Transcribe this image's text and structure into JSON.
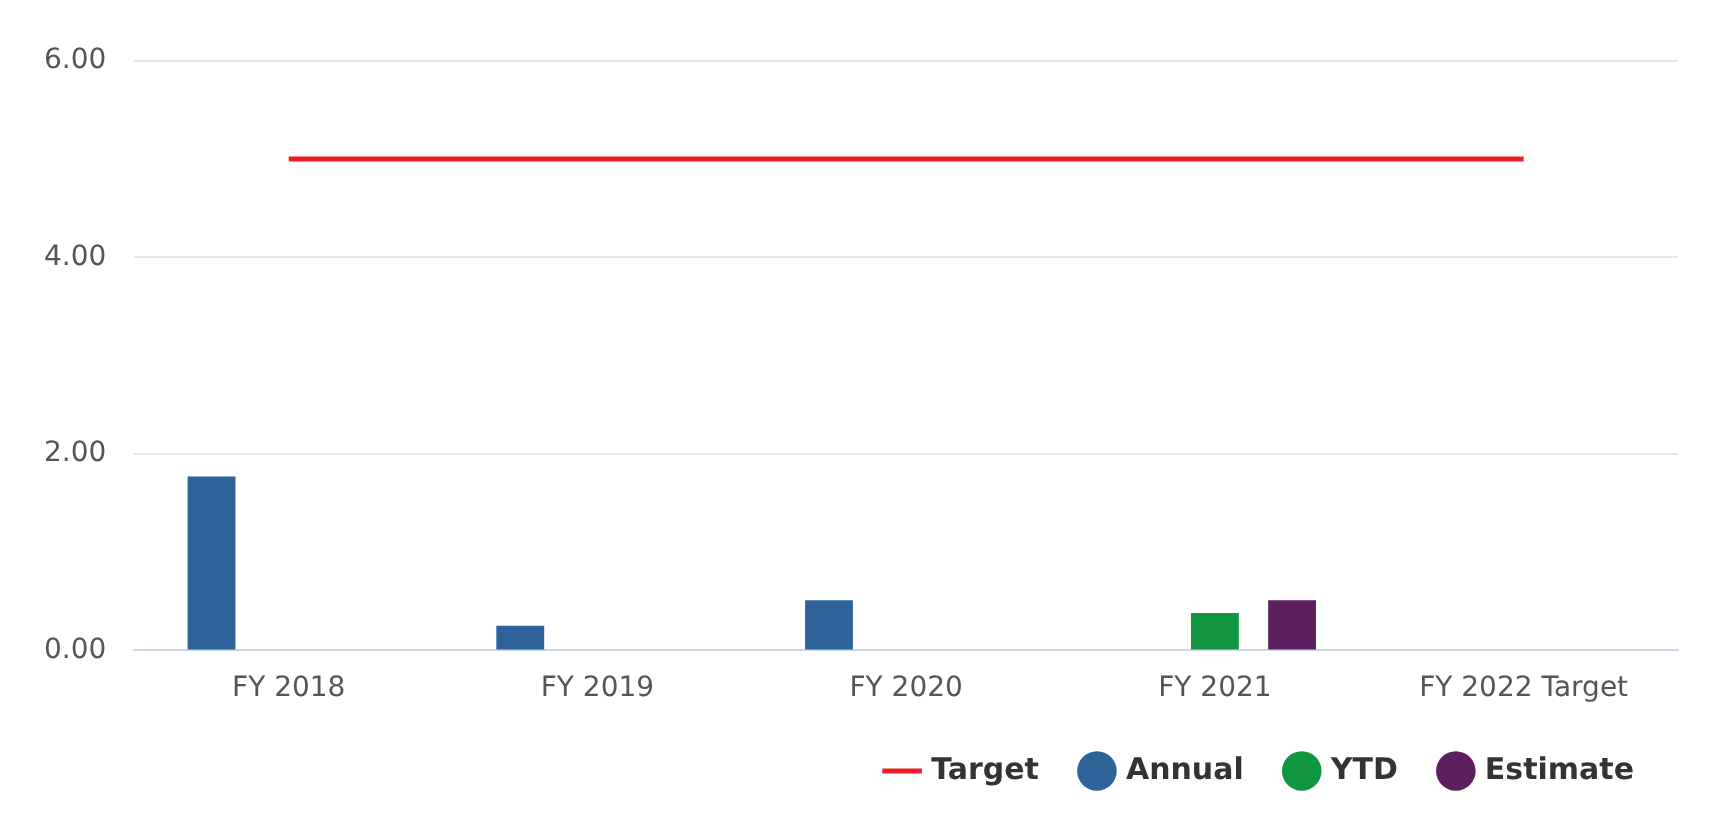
{
  "chart_data": {
    "type": "bar",
    "categories": [
      "FY 2018",
      "FY 2019",
      "FY 2020",
      "FY 2021",
      "FY 2022 Target"
    ],
    "series": [
      {
        "name": "Annual",
        "color": "#2e6399",
        "values": [
          1.77,
          0.25,
          0.51,
          null,
          null
        ]
      },
      {
        "name": "Target",
        "type": "line",
        "color": "#ee1c25",
        "values": [
          5,
          5,
          5,
          5,
          5
        ],
        "marker": "none"
      },
      {
        "name": "YTD",
        "color": "#11953e",
        "values": [
          null,
          null,
          null,
          0.38,
          null
        ]
      },
      {
        "name": "Estimate",
        "color": "#5e1f5e",
        "values": [
          null,
          null,
          null,
          0.51,
          null
        ]
      }
    ],
    "ylim": [
      0,
      6
    ],
    "yticks": [
      {
        "value": 0,
        "label": "0.00"
      },
      {
        "value": 2,
        "label": "2.00"
      },
      {
        "value": 4,
        "label": "4.00"
      },
      {
        "value": 6,
        "label": "6.00"
      }
    ],
    "grid": "y",
    "legend": "bottom right"
  }
}
